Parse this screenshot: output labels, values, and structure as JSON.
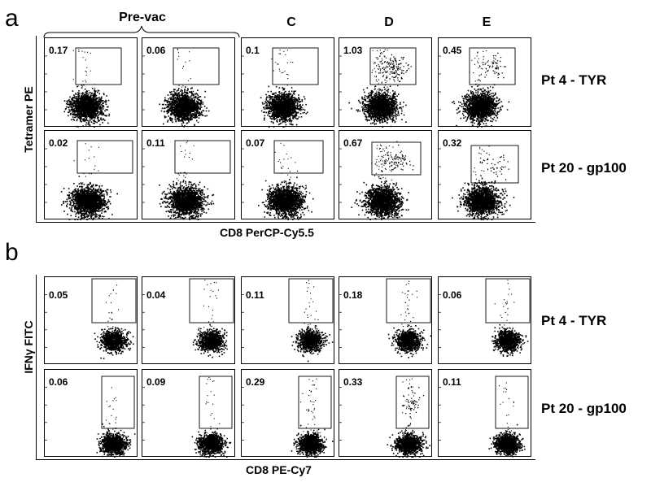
{
  "figure": {
    "panels": [
      {
        "letter": "a",
        "brace_label": "Pre-vac",
        "columns": [
          "C",
          "D",
          "E"
        ],
        "y_axis": "Tetramer PE",
        "x_axis": "CD8 PerCP-Cy5.5",
        "rows": [
          {
            "label": "Pt 4 - TYR",
            "values": [
              "0.17",
              "0.06",
              "0.1",
              "1.03",
              "0.45"
            ]
          },
          {
            "label": "Pt 20 - gp100",
            "values": [
              "0.02",
              "0.11",
              "0.07",
              "0.67",
              "0.32"
            ]
          }
        ]
      },
      {
        "letter": "b",
        "y_axis": "IFNγ FITC",
        "x_axis": "CD8 PE-Cy7",
        "rows": [
          {
            "label": "Pt 4 - TYR",
            "values": [
              "0.05",
              "0.04",
              "0.11",
              "0.18",
              "0.06"
            ]
          },
          {
            "label": "Pt 20 - gp100",
            "values": [
              "0.06",
              "0.09",
              "0.29",
              "0.33",
              "0.11"
            ]
          }
        ]
      }
    ]
  }
}
